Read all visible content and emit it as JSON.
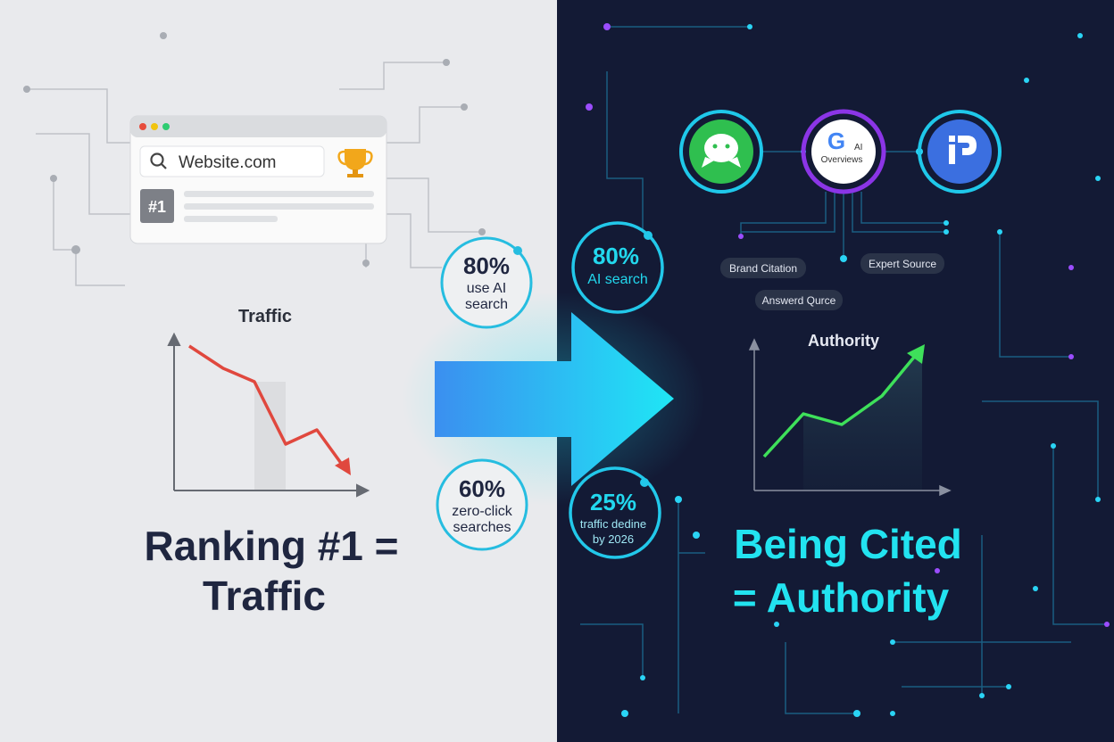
{
  "left": {
    "browser": {
      "url": "Website.com",
      "rank_badge": "#1"
    },
    "chart_title": "Traffic",
    "headline_line1": "Ranking #1 =",
    "headline_line2": "Traffic",
    "stats": [
      {
        "value": "80%",
        "label1": "use AI",
        "label2": "search"
      },
      {
        "value": "60%",
        "label1": "zero-click",
        "label2": "searches"
      }
    ]
  },
  "right": {
    "platforms": [
      {
        "icon": "chat-bubble-icon",
        "color": "#2fbf4f"
      },
      {
        "icon": "google-icon",
        "label1": "AI",
        "label2": "Overviews",
        "letter": "G"
      },
      {
        "icon": "perplexity-p-icon",
        "color": "#3b6fe0"
      }
    ],
    "tags": [
      "Brand Citation",
      "Expert Source",
      "Answerd Qurce"
    ],
    "chart_title": "Authority",
    "headline_line1": "Being Cited",
    "headline_line2": "= Authority",
    "stats": [
      {
        "value": "80%",
        "label1": "AI search"
      },
      {
        "value": "25%",
        "label1": "traffic dedine",
        "label2": "by 2026"
      }
    ]
  },
  "colors": {
    "left_bg": "#e9eaed",
    "right_bg": "#131a35",
    "accent_cyan": "#22e3f0",
    "trend_down": "#e0483e",
    "trend_up": "#3ee05a",
    "text_dark": "#1f2640"
  }
}
